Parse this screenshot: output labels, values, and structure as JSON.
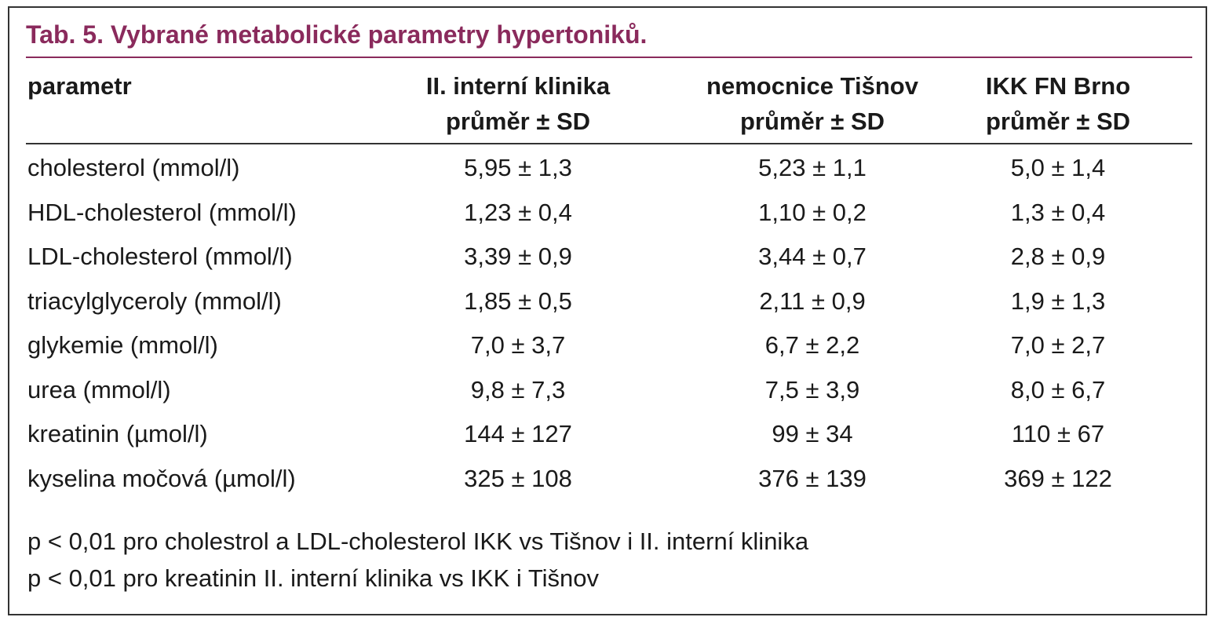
{
  "title": "Tab. 5. Vybrané metabolické parametry hypertoniků.",
  "table": {
    "header": [
      [
        "parametr"
      ],
      [
        "II. interní klinika",
        "průměr ± SD"
      ],
      [
        "nemocnice Tišnov",
        "průměr ± SD"
      ],
      [
        "IKK FN Brno",
        "průměr ± SD"
      ]
    ],
    "rows": [
      [
        "cholesterol (mmol/l)",
        "5,95 ± 1,3",
        "5,23 ± 1,1",
        "5,0 ± 1,4"
      ],
      [
        "HDL-cholesterol (mmol/l)",
        "1,23 ± 0,4",
        "1,10 ± 0,2",
        "1,3 ± 0,4"
      ],
      [
        "LDL-cholesterol (mmol/l)",
        "3,39 ± 0,9",
        "3,44 ± 0,7",
        "2,8 ± 0,9"
      ],
      [
        "triacylglyceroly (mmol/l)",
        "1,85 ± 0,5",
        "2,11 ± 0,9",
        "1,9 ± 1,3"
      ],
      [
        "glykemie (mmol/l)",
        "7,0 ± 3,7",
        "6,7 ± 2,2",
        "7,0 ± 2,7"
      ],
      [
        "urea (mmol/l)",
        "9,8 ± 7,3",
        "7,5 ± 3,9",
        "8,0 ± 6,7"
      ],
      [
        "kreatinin (µmol/l)",
        "144 ± 127",
        "99 ± 34",
        "110 ± 67"
      ],
      [
        "kyselina močová (µmol/l)",
        "325 ± 108",
        "376 ± 139",
        "369 ± 122"
      ]
    ]
  },
  "footnotes": [
    "p < 0,01 pro cholestrol a LDL-cholesterol IKK vs Tišnov i II. interní klinika",
    "p < 0,01 pro kreatinin II. interní klinika vs IKK i Tišnov"
  ]
}
